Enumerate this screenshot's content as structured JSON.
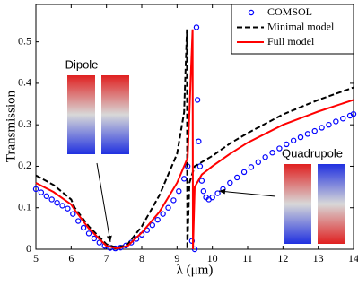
{
  "chart_data": {
    "type": "line",
    "xlabel": "λ (μm)",
    "ylabel": "Transmission",
    "xlim": [
      5,
      14
    ],
    "ylim": [
      0,
      0.59
    ],
    "xticks": [
      5,
      6,
      7,
      8,
      9,
      10,
      11,
      12,
      13,
      14
    ],
    "yticks": [
      0,
      0.1,
      0.2,
      0.3,
      0.4,
      0.5
    ],
    "legend": "upper right",
    "annotations": [
      "Dipole",
      "Quadrupole"
    ],
    "series": [
      {
        "name": "COMSOL",
        "type": "scatter",
        "marker": "circle",
        "color": "#0000ff",
        "x": [
          5,
          5.15,
          5.3,
          5.45,
          5.6,
          5.75,
          5.9,
          6.05,
          6.2,
          6.35,
          6.5,
          6.65,
          6.8,
          6.95,
          7.1,
          7.25,
          7.4,
          7.55,
          7.7,
          7.85,
          8,
          8.15,
          8.3,
          8.45,
          8.6,
          8.75,
          8.9,
          9.05,
          9.2,
          9.3,
          9.42,
          9.5,
          9.55,
          9.58,
          9.61,
          9.65,
          9.7,
          9.75,
          9.82,
          9.9,
          10,
          10.15,
          10.3,
          10.5,
          10.7,
          10.9,
          11.1,
          11.3,
          11.5,
          11.7,
          11.9,
          12.1,
          12.3,
          12.5,
          12.7,
          12.9,
          13.1,
          13.3,
          13.5,
          13.7,
          13.9,
          14
        ],
        "values": [
          0.145,
          0.137,
          0.128,
          0.12,
          0.112,
          0.105,
          0.098,
          0.085,
          0.068,
          0.052,
          0.038,
          0.026,
          0.016,
          0.008,
          0.003,
          0.002,
          0.004,
          0.009,
          0.016,
          0.025,
          0.035,
          0.046,
          0.058,
          0.071,
          0.085,
          0.1,
          0.118,
          0.14,
          0.17,
          0.2,
          0.02,
          0.0,
          0.535,
          0.36,
          0.26,
          0.2,
          0.165,
          0.14,
          0.125,
          0.12,
          0.125,
          0.135,
          0.145,
          0.16,
          0.173,
          0.186,
          0.198,
          0.21,
          0.222,
          0.233,
          0.243,
          0.253,
          0.262,
          0.27,
          0.278,
          0.285,
          0.293,
          0.3,
          0.308,
          0.315,
          0.322,
          0.326
        ]
      },
      {
        "name": "Minimal model",
        "type": "line",
        "linestyle": "dashed",
        "color": "#000000",
        "x": [
          5,
          5.5,
          6,
          6.1,
          6.5,
          7,
          7.3,
          7.6,
          8,
          8.5,
          9,
          9.2,
          9.28,
          9.29,
          9.35,
          9.5,
          10,
          10.5,
          11,
          12,
          13,
          14
        ],
        "values": [
          0.178,
          0.155,
          0.12,
          0.1,
          0.055,
          0.012,
          0.003,
          0.012,
          0.055,
          0.13,
          0.23,
          0.33,
          0.53,
          0,
          0.16,
          0.2,
          0.225,
          0.255,
          0.28,
          0.325,
          0.36,
          0.39
        ]
      },
      {
        "name": "Full model",
        "type": "line",
        "linestyle": "solid",
        "color": "#ff0000",
        "x": [
          5,
          5.5,
          6,
          6.1,
          6.5,
          7,
          7.3,
          7.6,
          8,
          8.5,
          9,
          9.3,
          9.44,
          9.45,
          9.5,
          9.7,
          10,
          10.5,
          11,
          12,
          13,
          14
        ],
        "values": [
          0.16,
          0.138,
          0.108,
          0.095,
          0.05,
          0.008,
          0.002,
          0.008,
          0.04,
          0.09,
          0.16,
          0.22,
          0.53,
          0,
          0.15,
          0.18,
          0.2,
          0.23,
          0.257,
          0.3,
          0.332,
          0.36
        ]
      }
    ]
  }
}
